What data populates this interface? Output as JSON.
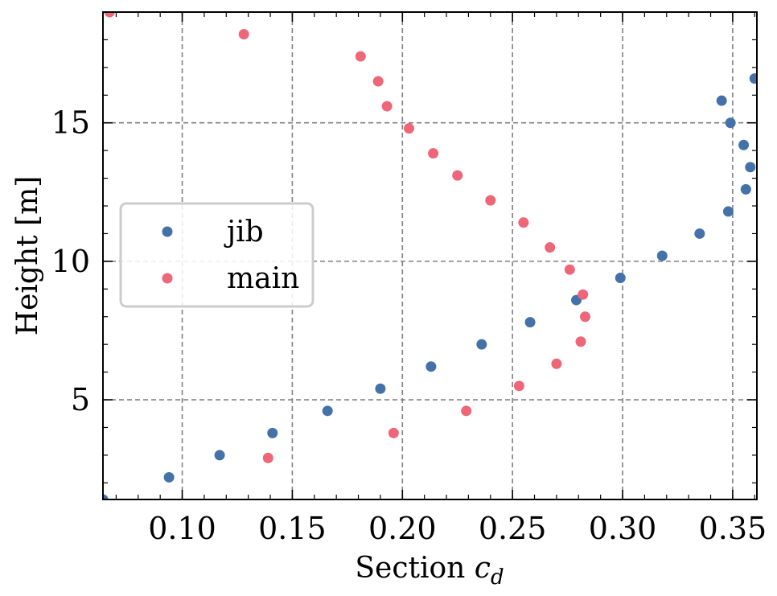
{
  "chart_data": {
    "type": "scatter",
    "xlabel_text": "Section ",
    "xlabel_math": "c",
    "xlabel_sub": "d",
    "ylabel": "Height [m]",
    "xlim": [
      0.064,
      0.361
    ],
    "ylim": [
      1.4,
      19.0
    ],
    "xticks": [
      0.1,
      0.15,
      0.2,
      0.25,
      0.3,
      0.35
    ],
    "xtick_labels": [
      "0.10",
      "0.15",
      "0.20",
      "0.25",
      "0.30",
      "0.35"
    ],
    "yticks": [
      5,
      10,
      15
    ],
    "ytick_labels": [
      "5",
      "10",
      "15"
    ],
    "grid": true,
    "legend_position": "center-left",
    "series": [
      {
        "name": "jib",
        "color": "#4472a8",
        "points": [
          [
            0.064,
            1.4
          ],
          [
            0.094,
            2.2
          ],
          [
            0.117,
            3.0
          ],
          [
            0.141,
            3.8
          ],
          [
            0.166,
            4.6
          ],
          [
            0.19,
            5.4
          ],
          [
            0.213,
            6.2
          ],
          [
            0.236,
            7.0
          ],
          [
            0.258,
            7.8
          ],
          [
            0.279,
            8.6
          ],
          [
            0.299,
            9.4
          ],
          [
            0.318,
            10.2
          ],
          [
            0.335,
            11.0
          ],
          [
            0.348,
            11.8
          ],
          [
            0.356,
            12.6
          ],
          [
            0.358,
            13.4
          ],
          [
            0.355,
            14.2
          ],
          [
            0.349,
            15.0
          ],
          [
            0.345,
            15.8
          ],
          [
            0.36,
            16.6
          ]
        ]
      },
      {
        "name": "main",
        "color": "#ee6677",
        "points": [
          [
            0.067,
            19.0
          ],
          [
            0.128,
            18.2
          ],
          [
            0.181,
            17.4
          ],
          [
            0.189,
            16.5
          ],
          [
            0.193,
            15.6
          ],
          [
            0.203,
            14.8
          ],
          [
            0.214,
            13.9
          ],
          [
            0.225,
            13.1
          ],
          [
            0.24,
            12.2
          ],
          [
            0.255,
            11.4
          ],
          [
            0.267,
            10.5
          ],
          [
            0.276,
            9.7
          ],
          [
            0.282,
            8.8
          ],
          [
            0.283,
            8.0
          ],
          [
            0.281,
            7.1
          ],
          [
            0.27,
            6.3
          ],
          [
            0.253,
            5.5
          ],
          [
            0.229,
            4.6
          ],
          [
            0.196,
            3.8
          ],
          [
            0.139,
            2.9
          ]
        ]
      }
    ]
  }
}
